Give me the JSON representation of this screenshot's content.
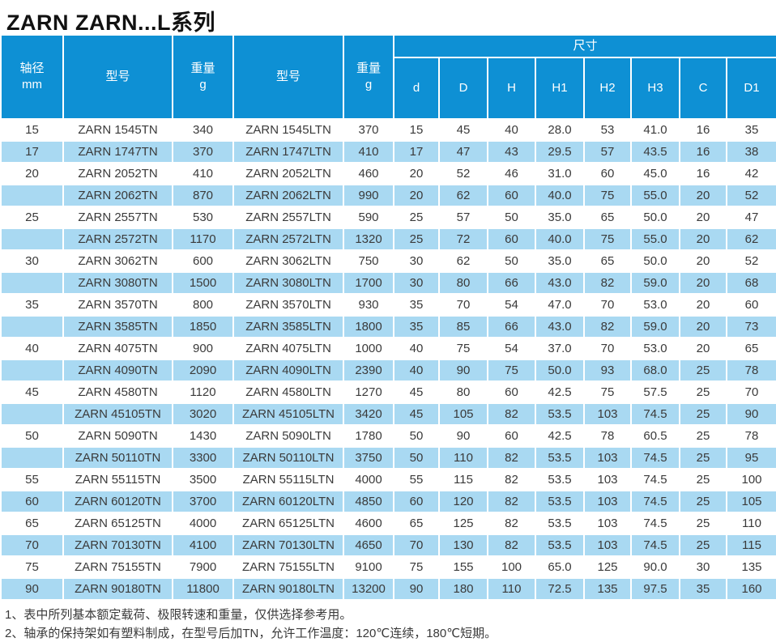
{
  "title": "ZARN ZARN...L系列",
  "colors": {
    "header_blue": "#0E90D4",
    "row_alt_blue": "#A9D9F2",
    "text_dark": "#3A3A3A"
  },
  "header": {
    "shaft_line1": "轴径",
    "shaft_line2": "mm",
    "model": "型号",
    "weight_line1": "重量",
    "weight_line2": "g",
    "dims_group": "尺寸",
    "dim_cols": [
      "d",
      "D",
      "H",
      "H1",
      "H2",
      "H3",
      "C",
      "D1"
    ]
  },
  "rows": [
    [
      "15",
      "ZARN 1545TN",
      "340",
      "ZARN 1545LTN",
      "370",
      "15",
      "45",
      "40",
      "28.0",
      "53",
      "41.0",
      "16",
      "35"
    ],
    [
      "17",
      "ZARN 1747TN",
      "370",
      "ZARN 1747LTN",
      "410",
      "17",
      "47",
      "43",
      "29.5",
      "57",
      "43.5",
      "16",
      "38"
    ],
    [
      "20",
      "ZARN 2052TN",
      "410",
      "ZARN 2052LTN",
      "460",
      "20",
      "52",
      "46",
      "31.0",
      "60",
      "45.0",
      "16",
      "42"
    ],
    [
      "",
      "ZARN 2062TN",
      "870",
      "ZARN 2062LTN",
      "990",
      "20",
      "62",
      "60",
      "40.0",
      "75",
      "55.0",
      "20",
      "52"
    ],
    [
      "25",
      "ZARN 2557TN",
      "530",
      "ZARN 2557LTN",
      "590",
      "25",
      "57",
      "50",
      "35.0",
      "65",
      "50.0",
      "20",
      "47"
    ],
    [
      "",
      "ZARN 2572TN",
      "1170",
      "ZARN 2572LTN",
      "1320",
      "25",
      "72",
      "60",
      "40.0",
      "75",
      "55.0",
      "20",
      "62"
    ],
    [
      "30",
      "ZARN 3062TN",
      "600",
      "ZARN 3062LTN",
      "750",
      "30",
      "62",
      "50",
      "35.0",
      "65",
      "50.0",
      "20",
      "52"
    ],
    [
      "",
      "ZARN 3080TN",
      "1500",
      "ZARN 3080LTN",
      "1700",
      "30",
      "80",
      "66",
      "43.0",
      "82",
      "59.0",
      "20",
      "68"
    ],
    [
      "35",
      "ZARN 3570TN",
      "800",
      "ZARN 3570LTN",
      "930",
      "35",
      "70",
      "54",
      "47.0",
      "70",
      "53.0",
      "20",
      "60"
    ],
    [
      "",
      "ZARN 3585TN",
      "1850",
      "ZARN 3585LTN",
      "1800",
      "35",
      "85",
      "66",
      "43.0",
      "82",
      "59.0",
      "20",
      "73"
    ],
    [
      "40",
      "ZARN 4075TN",
      "900",
      "ZARN 4075LTN",
      "1000",
      "40",
      "75",
      "54",
      "37.0",
      "70",
      "53.0",
      "20",
      "65"
    ],
    [
      "",
      "ZARN 4090TN",
      "2090",
      "ZARN 4090LTN",
      "2390",
      "40",
      "90",
      "75",
      "50.0",
      "93",
      "68.0",
      "25",
      "78"
    ],
    [
      "45",
      "ZARN 4580TN",
      "1120",
      "ZARN 4580LTN",
      "1270",
      "45",
      "80",
      "60",
      "42.5",
      "75",
      "57.5",
      "25",
      "70"
    ],
    [
      "",
      "ZARN 45105TN",
      "3020",
      "ZARN 45105LTN",
      "3420",
      "45",
      "105",
      "82",
      "53.5",
      "103",
      "74.5",
      "25",
      "90"
    ],
    [
      "50",
      "ZARN 5090TN",
      "1430",
      "ZARN 5090LTN",
      "1780",
      "50",
      "90",
      "60",
      "42.5",
      "78",
      "60.5",
      "25",
      "78"
    ],
    [
      "",
      "ZARN 50110TN",
      "3300",
      "ZARN 50110LTN",
      "3750",
      "50",
      "110",
      "82",
      "53.5",
      "103",
      "74.5",
      "25",
      "95"
    ],
    [
      "55",
      "ZARN 55115TN",
      "3500",
      "ZARN 55115LTN",
      "4000",
      "55",
      "115",
      "82",
      "53.5",
      "103",
      "74.5",
      "25",
      "100"
    ],
    [
      "60",
      "ZARN 60120TN",
      "3700",
      "ZARN 60120LTN",
      "4850",
      "60",
      "120",
      "82",
      "53.5",
      "103",
      "74.5",
      "25",
      "105"
    ],
    [
      "65",
      "ZARN 65125TN",
      "4000",
      "ZARN 65125LTN",
      "4600",
      "65",
      "125",
      "82",
      "53.5",
      "103",
      "74.5",
      "25",
      "110"
    ],
    [
      "70",
      "ZARN 70130TN",
      "4100",
      "ZARN 70130LTN",
      "4650",
      "70",
      "130",
      "82",
      "53.5",
      "103",
      "74.5",
      "25",
      "115"
    ],
    [
      "75",
      "ZARN 75155TN",
      "7900",
      "ZARN 75155LTN",
      "9100",
      "75",
      "155",
      "100",
      "65.0",
      "125",
      "90.0",
      "30",
      "135"
    ],
    [
      "90",
      "ZARN 90180TN",
      "11800",
      "ZARN 90180LTN",
      "13200",
      "90",
      "180",
      "110",
      "72.5",
      "135",
      "97.5",
      "35",
      "160"
    ]
  ],
  "notes": [
    "1、表中所列基本额定载荷、极限转速和重量，仅供选择参考用。",
    "2、轴承的保持架如有塑料制成，在型号后加TN，允许工作温度：120℃连续，180℃短期。"
  ]
}
